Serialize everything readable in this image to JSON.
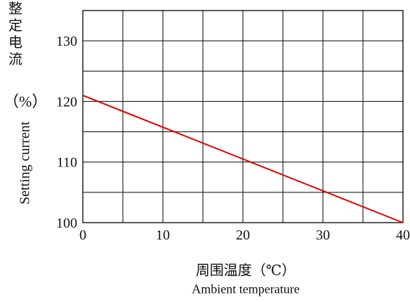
{
  "chart_data": {
    "type": "line",
    "ylabel_cn_chars": [
      "整",
      "定",
      "电",
      "流"
    ],
    "ylabel_unit": "（%）",
    "ylabel_en": "Setting current",
    "xlabel_cn": "周围温度（℃）",
    "xlabel_en": "Ambient temperature",
    "xlim": [
      0,
      40
    ],
    "ylim": [
      100,
      135
    ],
    "x_ticks": [
      0,
      10,
      20,
      30,
      40
    ],
    "y_ticks": [
      100,
      110,
      120,
      130
    ],
    "grid": true,
    "line_color": "#e00000",
    "series": [
      {
        "x": [
          0,
          40
        ],
        "values": [
          121,
          100
        ]
      }
    ]
  }
}
